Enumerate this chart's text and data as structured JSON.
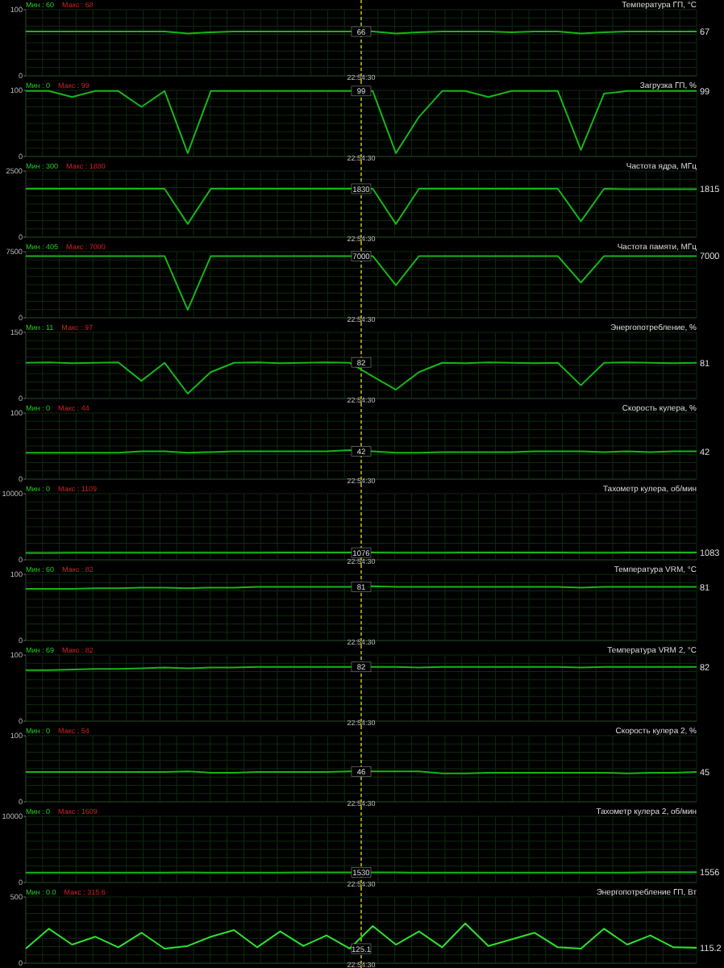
{
  "chart_data": [
    {
      "type": "line",
      "title": "Температура ГП, °C",
      "ylim": [
        0,
        100
      ],
      "yticks": [
        0,
        100
      ],
      "tick_labels": "y",
      "grid": true,
      "ref_lines": [
        {
          "axis": "x",
          "label": "22:54:30",
          "color": "#c8b400",
          "line_style": "dashed"
        }
      ],
      "categories": [
        null,
        null,
        null,
        null,
        null,
        null,
        null,
        null,
        null,
        null,
        null,
        null,
        null,
        null,
        null,
        null,
        null,
        null,
        null,
        null,
        null,
        null,
        null,
        null,
        null,
        null,
        null,
        null,
        null,
        null
      ],
      "series": [
        {
          "color": "#19b419",
          "values": [
            67,
            67,
            67,
            67,
            67,
            67,
            67,
            64,
            66,
            67,
            67,
            67,
            67,
            67,
            67,
            67,
            64,
            66,
            67,
            67,
            67,
            66,
            67,
            67,
            64,
            66,
            67,
            67,
            67,
            67
          ],
          "value_labels": [
            null,
            null,
            null,
            null,
            null,
            null,
            null,
            null,
            null,
            null,
            null,
            null,
            null,
            null,
            null,
            null,
            null,
            null,
            null,
            null,
            null,
            null,
            null,
            null,
            null,
            null,
            null,
            null,
            null,
            "67"
          ]
        }
      ],
      "annotations": [
        "Мин : 60",
        "Макс : 68",
        {
          "text": "66",
          "y": 67
        }
      ]
    },
    {
      "type": "line",
      "title": "Загрузка ГП, %",
      "ylim": [
        0,
        100
      ],
      "yticks": [
        0,
        100
      ],
      "tick_labels": "y",
      "grid": true,
      "ref_lines": [
        {
          "axis": "x",
          "label": "22:54:30",
          "color": "#c8b400",
          "line_style": "dashed"
        }
      ],
      "categories": [
        null,
        null,
        null,
        null,
        null,
        null,
        null,
        null,
        null,
        null,
        null,
        null,
        null,
        null,
        null,
        null,
        null,
        null,
        null,
        null,
        null,
        null,
        null,
        null,
        null,
        null,
        null,
        null,
        null,
        null
      ],
      "series": [
        {
          "color": "#19b419",
          "values": [
            99,
            99,
            90,
            99,
            99,
            75,
            99,
            5,
            99,
            99,
            99,
            99,
            99,
            99,
            99,
            99,
            5,
            60,
            99,
            99,
            90,
            99,
            99,
            99,
            10,
            95,
            99,
            99,
            99,
            99
          ],
          "value_labels": [
            null,
            null,
            null,
            null,
            null,
            null,
            null,
            null,
            null,
            null,
            null,
            null,
            null,
            null,
            null,
            null,
            null,
            null,
            null,
            null,
            null,
            null,
            null,
            null,
            null,
            null,
            null,
            null,
            null,
            "99"
          ]
        }
      ],
      "annotations": [
        "Мин : 0",
        "Макс : 99",
        {
          "text": "99",
          "y": 99
        }
      ]
    },
    {
      "type": "line",
      "title": "Частота ядра, МГц",
      "ylim": [
        0,
        2500
      ],
      "yticks": [
        0,
        2500
      ],
      "tick_labels": "y",
      "grid": true,
      "ref_lines": [
        {
          "axis": "x",
          "label": "22:54:30",
          "color": "#c8b400",
          "line_style": "dashed"
        }
      ],
      "categories": [
        null,
        null,
        null,
        null,
        null,
        null,
        null,
        null,
        null,
        null,
        null,
        null,
        null,
        null,
        null,
        null,
        null,
        null,
        null,
        null,
        null,
        null,
        null,
        null,
        null,
        null,
        null,
        null,
        null,
        null
      ],
      "series": [
        {
          "color": "#19b419",
          "values": [
            1830,
            1830,
            1830,
            1830,
            1830,
            1830,
            1830,
            500,
            1830,
            1830,
            1830,
            1830,
            1830,
            1830,
            1830,
            1830,
            500,
            1830,
            1830,
            1830,
            1830,
            1830,
            1830,
            1830,
            600,
            1830,
            1815,
            1815,
            1815,
            1815
          ],
          "value_labels": [
            null,
            null,
            null,
            null,
            null,
            null,
            null,
            null,
            null,
            null,
            null,
            null,
            null,
            null,
            null,
            null,
            null,
            null,
            null,
            null,
            null,
            null,
            null,
            null,
            null,
            null,
            null,
            null,
            null,
            "1815"
          ]
        }
      ],
      "annotations": [
        "Мин : 300",
        "Макс : 1880",
        {
          "text": "1830",
          "y": 1830
        }
      ]
    },
    {
      "type": "line",
      "title": "Частота памяти, МГц",
      "ylim": [
        0,
        7500
      ],
      "yticks": [
        0,
        7500
      ],
      "tick_labels": "y",
      "grid": true,
      "ref_lines": [
        {
          "axis": "x",
          "label": "22:54:30",
          "color": "#c8b400",
          "line_style": "dashed"
        }
      ],
      "categories": [
        null,
        null,
        null,
        null,
        null,
        null,
        null,
        null,
        null,
        null,
        null,
        null,
        null,
        null,
        null,
        null,
        null,
        null,
        null,
        null,
        null,
        null,
        null,
        null,
        null,
        null,
        null,
        null,
        null,
        null
      ],
      "series": [
        {
          "color": "#19b419",
          "values": [
            7000,
            7000,
            7000,
            7000,
            7000,
            7000,
            7000,
            900,
            7000,
            7000,
            7000,
            7000,
            7000,
            7000,
            7000,
            7000,
            3700,
            7000,
            7000,
            7000,
            7000,
            7000,
            7000,
            7000,
            4000,
            7000,
            7000,
            7000,
            7000,
            7000
          ],
          "value_labels": [
            null,
            null,
            null,
            null,
            null,
            null,
            null,
            null,
            null,
            null,
            null,
            null,
            null,
            null,
            null,
            null,
            null,
            null,
            null,
            null,
            null,
            null,
            null,
            null,
            null,
            null,
            null,
            null,
            null,
            "7000"
          ]
        }
      ],
      "annotations": [
        "Мин : 405",
        "Макс : 7000",
        {
          "text": "7000",
          "y": 7000
        }
      ]
    },
    {
      "type": "line",
      "title": "Энергопотребление, %",
      "ylim": [
        0,
        150
      ],
      "yticks": [
        0,
        150
      ],
      "tick_labels": "y",
      "grid": true,
      "ref_lines": [
        {
          "axis": "x",
          "label": "22:54:30",
          "color": "#c8b400",
          "line_style": "dashed"
        }
      ],
      "categories": [
        null,
        null,
        null,
        null,
        null,
        null,
        null,
        null,
        null,
        null,
        null,
        null,
        null,
        null,
        null,
        null,
        null,
        null,
        null,
        null,
        null,
        null,
        null,
        null,
        null,
        null,
        null,
        null,
        null,
        null
      ],
      "series": [
        {
          "color": "#19b419",
          "values": [
            81,
            82,
            80,
            81,
            82,
            40,
            81,
            11,
            60,
            81,
            82,
            80,
            81,
            82,
            81,
            50,
            20,
            60,
            81,
            80,
            82,
            81,
            80,
            81,
            30,
            81,
            82,
            81,
            80,
            81
          ],
          "value_labels": [
            null,
            null,
            null,
            null,
            null,
            null,
            null,
            null,
            null,
            null,
            null,
            null,
            null,
            null,
            null,
            null,
            null,
            null,
            null,
            null,
            null,
            null,
            null,
            null,
            null,
            null,
            null,
            null,
            null,
            "81"
          ]
        }
      ],
      "annotations": [
        "Мин : 11",
        "Макс : 97",
        {
          "text": "82",
          "y": 82
        }
      ]
    },
    {
      "type": "line",
      "title": "Скорость кулера, %",
      "ylim": [
        0,
        100
      ],
      "yticks": [
        0,
        100
      ],
      "tick_labels": "y",
      "grid": true,
      "ref_lines": [
        {
          "axis": "x",
          "label": "22:54:30",
          "color": "#c8b400",
          "line_style": "dashed"
        }
      ],
      "categories": [
        null,
        null,
        null,
        null,
        null,
        null,
        null,
        null,
        null,
        null,
        null,
        null,
        null,
        null,
        null,
        null,
        null,
        null,
        null,
        null,
        null,
        null,
        null,
        null,
        null,
        null,
        null,
        null,
        null,
        null
      ],
      "series": [
        {
          "color": "#19b419",
          "values": [
            40,
            40,
            40,
            40,
            40,
            42,
            42,
            40,
            41,
            42,
            42,
            42,
            42,
            42,
            44,
            42,
            40,
            40,
            41,
            41,
            41,
            41,
            42,
            42,
            42,
            41,
            42,
            41,
            42,
            42
          ],
          "value_labels": [
            null,
            null,
            null,
            null,
            null,
            null,
            null,
            null,
            null,
            null,
            null,
            null,
            null,
            null,
            null,
            null,
            null,
            null,
            null,
            null,
            null,
            null,
            null,
            null,
            null,
            null,
            null,
            null,
            null,
            "42"
          ]
        }
      ],
      "annotations": [
        "Мин : 0",
        "Макс : 44",
        {
          "text": "42",
          "y": 42
        }
      ]
    },
    {
      "type": "line",
      "title": "Тахометр кулера, об/мин",
      "ylim": [
        0,
        10000
      ],
      "yticks": [
        0,
        10000
      ],
      "tick_labels": "y",
      "grid": true,
      "ref_lines": [
        {
          "axis": "x",
          "label": "22:54:30",
          "color": "#c8b400",
          "line_style": "dashed"
        }
      ],
      "categories": [
        null,
        null,
        null,
        null,
        null,
        null,
        null,
        null,
        null,
        null,
        null,
        null,
        null,
        null,
        null,
        null,
        null,
        null,
        null,
        null,
        null,
        null,
        null,
        null,
        null,
        null,
        null,
        null,
        null,
        null
      ],
      "series": [
        {
          "color": "#19b419",
          "values": [
            1050,
            1050,
            1060,
            1070,
            1070,
            1080,
            1080,
            1060,
            1070,
            1080,
            1080,
            1083,
            1083,
            1083,
            1083,
            1090,
            1080,
            1070,
            1080,
            1083,
            1083,
            1083,
            1083,
            1083,
            1070,
            1080,
            1083,
            1083,
            1083,
            1083
          ],
          "value_labels": [
            null,
            null,
            null,
            null,
            null,
            null,
            null,
            null,
            null,
            null,
            null,
            null,
            null,
            null,
            null,
            null,
            null,
            null,
            null,
            null,
            null,
            null,
            null,
            null,
            null,
            null,
            null,
            null,
            null,
            "1083"
          ]
        }
      ],
      "annotations": [
        "Мин : 0",
        "Макс : 1109",
        {
          "text": "1076",
          "y": 1083
        }
      ]
    },
    {
      "type": "line",
      "title": "Температура VRM, °C",
      "ylim": [
        0,
        100
      ],
      "yticks": [
        0,
        100
      ],
      "tick_labels": "y",
      "grid": true,
      "ref_lines": [
        {
          "axis": "x",
          "label": "22:54:30",
          "color": "#c8b400",
          "line_style": "dashed"
        }
      ],
      "categories": [
        null,
        null,
        null,
        null,
        null,
        null,
        null,
        null,
        null,
        null,
        null,
        null,
        null,
        null,
        null,
        null,
        null,
        null,
        null,
        null,
        null,
        null,
        null,
        null,
        null,
        null,
        null,
        null,
        null,
        null
      ],
      "series": [
        {
          "color": "#19b419",
          "values": [
            78,
            78,
            78,
            79,
            79,
            80,
            80,
            79,
            80,
            80,
            81,
            81,
            81,
            81,
            81,
            82,
            81,
            81,
            81,
            81,
            81,
            81,
            81,
            81,
            80,
            81,
            81,
            81,
            81,
            81
          ],
          "value_labels": [
            null,
            null,
            null,
            null,
            null,
            null,
            null,
            null,
            null,
            null,
            null,
            null,
            null,
            null,
            null,
            null,
            null,
            null,
            null,
            null,
            null,
            null,
            null,
            null,
            null,
            null,
            null,
            null,
            null,
            "81"
          ]
        }
      ],
      "annotations": [
        "Мин : 60",
        "Макс : 82",
        {
          "text": "81",
          "y": 81
        }
      ]
    },
    {
      "type": "line",
      "title": "Температура VRM 2, °C",
      "ylim": [
        0,
        100
      ],
      "yticks": [
        0,
        100
      ],
      "tick_labels": "y",
      "grid": true,
      "ref_lines": [
        {
          "axis": "x",
          "label": "22:54:30",
          "color": "#c8b400",
          "line_style": "dashed"
        }
      ],
      "categories": [
        null,
        null,
        null,
        null,
        null,
        null,
        null,
        null,
        null,
        null,
        null,
        null,
        null,
        null,
        null,
        null,
        null,
        null,
        null,
        null,
        null,
        null,
        null,
        null,
        null,
        null,
        null,
        null,
        null,
        null
      ],
      "series": [
        {
          "color": "#19b419",
          "values": [
            77,
            77,
            78,
            79,
            79,
            80,
            81,
            80,
            81,
            81,
            82,
            82,
            82,
            82,
            82,
            82,
            82,
            81,
            82,
            82,
            82,
            82,
            82,
            82,
            81,
            82,
            82,
            82,
            82,
            82
          ],
          "value_labels": [
            null,
            null,
            null,
            null,
            null,
            null,
            null,
            null,
            null,
            null,
            null,
            null,
            null,
            null,
            null,
            null,
            null,
            null,
            null,
            null,
            null,
            null,
            null,
            null,
            null,
            null,
            null,
            null,
            null,
            "82"
          ]
        }
      ],
      "annotations": [
        "Мин : 69",
        "Макс : 82",
        {
          "text": "82",
          "y": 82
        }
      ]
    },
    {
      "type": "line",
      "title": "Скорость кулера 2, %",
      "ylim": [
        0,
        100
      ],
      "yticks": [
        0,
        100
      ],
      "tick_labels": "y",
      "grid": true,
      "ref_lines": [
        {
          "axis": "x",
          "label": "22:54:30",
          "color": "#c8b400",
          "line_style": "dashed"
        }
      ],
      "categories": [
        null,
        null,
        null,
        null,
        null,
        null,
        null,
        null,
        null,
        null,
        null,
        null,
        null,
        null,
        null,
        null,
        null,
        null,
        null,
        null,
        null,
        null,
        null,
        null,
        null,
        null,
        null,
        null,
        null,
        null
      ],
      "series": [
        {
          "color": "#19b419",
          "values": [
            45,
            45,
            45,
            45,
            45,
            45,
            45,
            46,
            44,
            44,
            45,
            45,
            45,
            45,
            46,
            46,
            46,
            46,
            43,
            43,
            44,
            44,
            44,
            44,
            44,
            44,
            43,
            44,
            44,
            45
          ],
          "value_labels": [
            null,
            null,
            null,
            null,
            null,
            null,
            null,
            null,
            null,
            null,
            null,
            null,
            null,
            null,
            null,
            null,
            null,
            null,
            null,
            null,
            null,
            null,
            null,
            null,
            null,
            null,
            null,
            null,
            null,
            "45"
          ]
        }
      ],
      "annotations": [
        "Мин : 0",
        "Макс : 54",
        {
          "text": "46",
          "y": 46
        }
      ]
    },
    {
      "type": "line",
      "title": "Тахометр кулера 2, об/мин",
      "ylim": [
        0,
        10000
      ],
      "yticks": [
        0,
        10000
      ],
      "tick_labels": "y",
      "grid": true,
      "ref_lines": [
        {
          "axis": "x",
          "label": "22:54:30",
          "color": "#c8b400",
          "line_style": "dashed"
        }
      ],
      "categories": [
        null,
        null,
        null,
        null,
        null,
        null,
        null,
        null,
        null,
        null,
        null,
        null,
        null,
        null,
        null,
        null,
        null,
        null,
        null,
        null,
        null,
        null,
        null,
        null,
        null,
        null,
        null,
        null,
        null,
        null
      ],
      "series": [
        {
          "color": "#19b419",
          "values": [
            1500,
            1500,
            1500,
            1500,
            1500,
            1500,
            1500,
            1520,
            1480,
            1480,
            1500,
            1500,
            1530,
            1530,
            1530,
            1530,
            1530,
            1480,
            1480,
            1480,
            1480,
            1480,
            1480,
            1480,
            1490,
            1500,
            1500,
            1540,
            1550,
            1556
          ],
          "value_labels": [
            null,
            null,
            null,
            null,
            null,
            null,
            null,
            null,
            null,
            null,
            null,
            null,
            null,
            null,
            null,
            null,
            null,
            null,
            null,
            null,
            null,
            null,
            null,
            null,
            null,
            null,
            null,
            null,
            null,
            "1556"
          ]
        }
      ],
      "annotations": [
        "Мин : 0",
        "Макс : 1609",
        {
          "text": "1530",
          "y": 1530
        }
      ]
    },
    {
      "type": "line",
      "title": "Энергопотребление ГП, Вт",
      "ylim": [
        0,
        500
      ],
      "yticks": [
        0,
        500
      ],
      "tick_labels": "y",
      "grid": true,
      "ref_lines": [
        {
          "axis": "x",
          "label": "22:54:30",
          "color": "#c8b400",
          "line_style": "dashed"
        }
      ],
      "categories": [
        null,
        null,
        null,
        null,
        null,
        null,
        null,
        null,
        null,
        null,
        null,
        null,
        null,
        null,
        null,
        null,
        null,
        null,
        null,
        null,
        null,
        null,
        null,
        null,
        null,
        null,
        null,
        null,
        null,
        null
      ],
      "series": [
        {
          "color": "#2ee02e",
          "values": [
            110,
            260,
            140,
            200,
            120,
            230,
            110,
            130,
            200,
            250,
            120,
            240,
            130,
            210,
            110,
            280,
            140,
            240,
            120,
            300,
            130,
            180,
            230,
            120,
            110,
            260,
            140,
            210,
            120,
            115.2
          ],
          "value_labels": [
            null,
            null,
            null,
            null,
            null,
            null,
            null,
            null,
            null,
            null,
            null,
            null,
            null,
            null,
            null,
            null,
            null,
            null,
            null,
            null,
            null,
            null,
            null,
            null,
            null,
            null,
            null,
            null,
            null,
            "115.2"
          ]
        }
      ],
      "annotations": [
        "Мин : 0.0",
        "Макс : 315.6",
        {
          "text": "125.1",
          "y": 110
        }
      ]
    }
  ]
}
